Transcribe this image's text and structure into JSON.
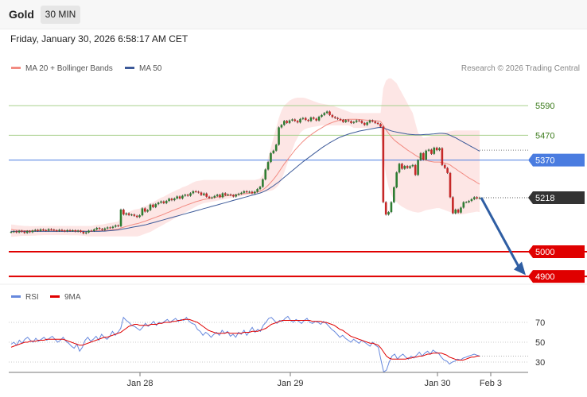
{
  "header": {
    "instrument": "Gold",
    "timeframe": "30 MIN",
    "datetime": "Friday, January 30, 2026 6:58:17 AM CET"
  },
  "legend": {
    "ma20_label": "MA 20 + Bollinger Bands",
    "ma50_label": "MA 50",
    "credit": "Research © 2026 Trading Central"
  },
  "rsi_legend": {
    "rsi_label": "RSI",
    "ma_label": "9MA"
  },
  "colors": {
    "ma20": "#f28b82",
    "ma50": "#3d5a99",
    "bollinger_fill": "#fde2e0",
    "resistance": "#a8d08d",
    "pivot": "#4a7ce0",
    "support": "#e00000",
    "current": "#333333",
    "arrow": "#2f5ea3",
    "rsi": "#6688dd",
    "rsi_ma": "#e00000"
  },
  "chart_data": [
    {
      "type": "candlestick",
      "title": "Gold",
      "timeframe": "30 MIN",
      "x_ticks": [
        "Jan 28",
        "Jan 29",
        "Jan 30",
        "Feb 3"
      ],
      "ylim": [
        4860,
        5700
      ],
      "levels": [
        {
          "value": 5590,
          "label": "5590",
          "kind": "resistance"
        },
        {
          "value": 5470,
          "label": "5470",
          "kind": "resistance"
        },
        {
          "value": 5370,
          "label": "5370",
          "kind": "pivot"
        },
        {
          "value": 5218,
          "label": "5218",
          "kind": "current"
        },
        {
          "value": 5000,
          "label": "5000",
          "kind": "support"
        },
        {
          "value": 4900,
          "label": "4900",
          "kind": "support"
        }
      ],
      "close": [
        5080,
        5082,
        5078,
        5084,
        5081,
        5076,
        5083,
        5079,
        5085,
        5088,
        5084,
        5090,
        5087,
        5085,
        5091,
        5089,
        5086,
        5084,
        5088,
        5085,
        5083,
        5087,
        5084,
        5086,
        5082,
        5085,
        5080,
        5074,
        5078,
        5085,
        5084,
        5090,
        5096,
        5092,
        5088,
        5094,
        5098,
        5096,
        5101,
        5106,
        5103,
        5170,
        5150,
        5155,
        5148,
        5150,
        5145,
        5140,
        5147,
        5175,
        5162,
        5168,
        5190,
        5180,
        5192,
        5198,
        5203,
        5196,
        5205,
        5214,
        5208,
        5215,
        5223,
        5215,
        5226,
        5230,
        5226,
        5236,
        5244,
        5242,
        5239,
        5229,
        5235,
        5222,
        5217,
        5219,
        5225,
        5230,
        5220,
        5236,
        5229,
        5231,
        5228,
        5223,
        5230,
        5234,
        5238,
        5244,
        5240,
        5242,
        5236,
        5242,
        5253,
        5262,
        5292,
        5332,
        5362,
        5398,
        5408,
        5432,
        5502,
        5512,
        5528,
        5520,
        5530,
        5534,
        5528,
        5522,
        5536,
        5540,
        5532,
        5528,
        5542,
        5537,
        5530,
        5545,
        5552,
        5560,
        5566,
        5552,
        5544,
        5540,
        5536,
        5532,
        5524,
        5531,
        5527,
        5520,
        5524,
        5530,
        5528,
        5520,
        5512,
        5522,
        5530,
        5526,
        5520,
        5516,
        5505,
        5200,
        5150,
        5160,
        5200,
        5260,
        5320,
        5355,
        5335,
        5346,
        5338,
        5345,
        5350,
        5310,
        5370,
        5398,
        5372,
        5408,
        5412,
        5395,
        5420,
        5410,
        5418,
        5350,
        5338,
        5318,
        5220,
        5155,
        5170,
        5158,
        5178,
        5200,
        5200,
        5205,
        5212,
        5220,
        5215,
        5218
      ],
      "ma20": [
        5090,
        5088,
        5087,
        5086,
        5086,
        5085,
        5085,
        5084,
        5085,
        5085,
        5085,
        5086,
        5086,
        5086,
        5086,
        5086,
        5086,
        5086,
        5086,
        5085,
        5085,
        5085,
        5085,
        5085,
        5085,
        5085,
        5084,
        5084,
        5083,
        5083,
        5083,
        5084,
        5085,
        5085,
        5085,
        5086,
        5087,
        5088,
        5089,
        5090,
        5092,
        5096,
        5099,
        5102,
        5105,
        5108,
        5111,
        5113,
        5116,
        5120,
        5123,
        5127,
        5131,
        5135,
        5139,
        5143,
        5147,
        5151,
        5156,
        5160,
        5165,
        5169,
        5173,
        5177,
        5182,
        5186,
        5190,
        5194,
        5198,
        5202,
        5205,
        5208,
        5211,
        5213,
        5215,
        5217,
        5219,
        5221,
        5222,
        5223,
        5225,
        5226,
        5228,
        5229,
        5230,
        5231,
        5232,
        5234,
        5235,
        5236,
        5237,
        5239,
        5241,
        5244,
        5250,
        5258,
        5268,
        5280,
        5292,
        5306,
        5322,
        5338,
        5354,
        5368,
        5382,
        5396,
        5410,
        5422,
        5434,
        5445,
        5455,
        5464,
        5472,
        5480,
        5487,
        5494,
        5500,
        5507,
        5513,
        5518,
        5522,
        5526,
        5529,
        5531,
        5533,
        5534,
        5535,
        5535,
        5535,
        5535,
        5534,
        5533,
        5532,
        5531,
        5531,
        5530,
        5529,
        5528,
        5526,
        5510,
        5493,
        5478,
        5464,
        5452,
        5443,
        5435,
        5427,
        5419,
        5411,
        5404,
        5397,
        5390,
        5383,
        5379,
        5373,
        5369,
        5366,
        5364,
        5362,
        5362,
        5362,
        5360,
        5358,
        5355,
        5350,
        5342,
        5335,
        5327,
        5320,
        5313,
        5305,
        5298,
        5292,
        5286,
        5279,
        5273
      ],
      "ma50": [
        5082,
        5082,
        5082,
        5082,
        5082,
        5082,
        5082,
        5082,
        5082,
        5082,
        5082,
        5082,
        5082,
        5082,
        5082,
        5082,
        5082,
        5082,
        5082,
        5082,
        5082,
        5082,
        5082,
        5082,
        5082,
        5082,
        5082,
        5082,
        5082,
        5082,
        5082,
        5082,
        5082,
        5082,
        5083,
        5083,
        5084,
        5085,
        5086,
        5087,
        5088,
        5090,
        5092,
        5094,
        5096,
        5098,
        5100,
        5102,
        5104,
        5106,
        5108,
        5111,
        5114,
        5117,
        5120,
        5123,
        5126,
        5129,
        5132,
        5135,
        5138,
        5141,
        5144,
        5147,
        5150,
        5153,
        5156,
        5159,
        5162,
        5165,
        5168,
        5171,
        5174,
        5177,
        5180,
        5183,
        5186,
        5189,
        5192,
        5195,
        5198,
        5201,
        5204,
        5207,
        5210,
        5213,
        5216,
        5219,
        5222,
        5225,
        5228,
        5231,
        5234,
        5237,
        5241,
        5246,
        5252,
        5259,
        5266,
        5274,
        5282,
        5291,
        5300,
        5309,
        5318,
        5327,
        5336,
        5345,
        5354,
        5363,
        5371,
        5379,
        5387,
        5395,
        5403,
        5411,
        5419,
        5426,
        5433,
        5440,
        5446,
        5452,
        5458,
        5463,
        5467,
        5471,
        5475,
        5478,
        5481,
        5484,
        5487,
        5489,
        5491,
        5493,
        5495,
        5497,
        5499,
        5501,
        5502,
        5500,
        5496,
        5492,
        5488,
        5485,
        5483,
        5481,
        5479,
        5477,
        5475,
        5474,
        5473,
        5472,
        5472,
        5472,
        5473,
        5474,
        5474,
        5475,
        5476,
        5477,
        5478,
        5478,
        5477,
        5475,
        5470,
        5465,
        5460,
        5454,
        5448,
        5442,
        5436,
        5430,
        5424,
        5418,
        5412,
        5406
      ],
      "bollinger_upper": [
        5110,
        5109,
        5107,
        5106,
        5105,
        5104,
        5104,
        5103,
        5103,
        5103,
        5103,
        5104,
        5104,
        5104,
        5104,
        5104,
        5104,
        5104,
        5104,
        5104,
        5104,
        5104,
        5104,
        5104,
        5104,
        5104,
        5104,
        5104,
        5104,
        5104,
        5104,
        5106,
        5108,
        5109,
        5110,
        5112,
        5114,
        5116,
        5118,
        5120,
        5122,
        5138,
        5146,
        5154,
        5160,
        5166,
        5170,
        5172,
        5174,
        5180,
        5184,
        5188,
        5196,
        5200,
        5206,
        5212,
        5218,
        5222,
        5228,
        5234,
        5240,
        5244,
        5250,
        5254,
        5260,
        5264,
        5268,
        5274,
        5280,
        5284,
        5286,
        5288,
        5290,
        5290,
        5290,
        5290,
        5290,
        5290,
        5290,
        5290,
        5290,
        5290,
        5290,
        5290,
        5290,
        5290,
        5290,
        5290,
        5290,
        5290,
        5290,
        5290,
        5292,
        5296,
        5310,
        5340,
        5380,
        5420,
        5460,
        5500,
        5540,
        5570,
        5590,
        5600,
        5610,
        5616,
        5620,
        5622,
        5622,
        5622,
        5620,
        5616,
        5612,
        5608,
        5604,
        5600,
        5598,
        5596,
        5594,
        5592,
        5590,
        5586,
        5582,
        5578,
        5574,
        5570,
        5566,
        5562,
        5560,
        5560,
        5560,
        5560,
        5560,
        5560,
        5560,
        5560,
        5560,
        5560,
        5560,
        5660,
        5690,
        5700,
        5700,
        5690,
        5680,
        5660,
        5640,
        5620,
        5600,
        5580,
        5560,
        5520,
        5480,
        5470,
        5460,
        5462,
        5464,
        5468,
        5472,
        5476,
        5478,
        5480,
        5482,
        5484,
        5486,
        5488,
        5490,
        5490,
        5490,
        5490,
        5490,
        5490,
        5490,
        5490,
        5490,
        5490
      ],
      "bollinger_lower": [
        5060,
        5061,
        5062,
        5063,
        5064,
        5064,
        5064,
        5064,
        5065,
        5065,
        5066,
        5066,
        5067,
        5067,
        5067,
        5067,
        5067,
        5067,
        5067,
        5067,
        5067,
        5067,
        5066,
        5066,
        5066,
        5066,
        5065,
        5064,
        5063,
        5062,
        5062,
        5062,
        5062,
        5062,
        5062,
        5062,
        5062,
        5062,
        5062,
        5062,
        5062,
        5062,
        5062,
        5062,
        5062,
        5062,
        5062,
        5062,
        5064,
        5068,
        5072,
        5076,
        5080,
        5086,
        5092,
        5098,
        5104,
        5110,
        5116,
        5122,
        5128,
        5134,
        5140,
        5146,
        5152,
        5158,
        5164,
        5170,
        5176,
        5182,
        5188,
        5192,
        5196,
        5198,
        5200,
        5202,
        5204,
        5206,
        5208,
        5210,
        5212,
        5214,
        5216,
        5218,
        5220,
        5222,
        5224,
        5226,
        5228,
        5230,
        5232,
        5234,
        5236,
        5238,
        5240,
        5242,
        5244,
        5246,
        5250,
        5258,
        5270,
        5290,
        5320,
        5350,
        5380,
        5410,
        5440,
        5460,
        5480,
        5490,
        5496,
        5500,
        5502,
        5504,
        5506,
        5508,
        5510,
        5510,
        5510,
        5510,
        5510,
        5510,
        5510,
        5510,
        5510,
        5510,
        5510,
        5506,
        5500,
        5500,
        5500,
        5500,
        5500,
        5500,
        5500,
        5500,
        5500,
        5500,
        5495,
        5380,
        5310,
        5260,
        5230,
        5210,
        5200,
        5190,
        5182,
        5176,
        5170,
        5166,
        5162,
        5160,
        5158,
        5160,
        5164,
        5168,
        5170,
        5172,
        5174,
        5176,
        5176,
        5172,
        5168,
        5164,
        5160,
        5156,
        5152,
        5150,
        5150,
        5152,
        5154,
        5156,
        5158,
        5160,
        5162,
        5160
      ]
    },
    {
      "type": "line",
      "title": "RSI",
      "yticks": [
        30,
        50,
        70
      ],
      "ylim": [
        20,
        80
      ],
      "series": [
        {
          "name": "RSI",
          "values": [
            48,
            50,
            47,
            52,
            49,
            53,
            55,
            52,
            50,
            54,
            51,
            53,
            55,
            52,
            54,
            56,
            53,
            50,
            52,
            55,
            51,
            49,
            46,
            44,
            48,
            41,
            45,
            52,
            55,
            51,
            53,
            56,
            52,
            58,
            55,
            53,
            56,
            61,
            57,
            60,
            64,
            75,
            72,
            70,
            67,
            66,
            64,
            62,
            65,
            69,
            66,
            68,
            71,
            67,
            70,
            69,
            71,
            73,
            70,
            72,
            74,
            71,
            73,
            72,
            75,
            71,
            69,
            68,
            63,
            61,
            57,
            60,
            58,
            55,
            58,
            60,
            57,
            62,
            59,
            61,
            56,
            58,
            55,
            60,
            58,
            62,
            57,
            61,
            65,
            60,
            63,
            61,
            67,
            70,
            74,
            75,
            72,
            69,
            72,
            71,
            74,
            76,
            72,
            70,
            73,
            71,
            69,
            72,
            74,
            70,
            69,
            71,
            70,
            68,
            71,
            69,
            66,
            63,
            61,
            58,
            55,
            57,
            54,
            52,
            50,
            53,
            51,
            49,
            52,
            50,
            48,
            46,
            50,
            47,
            45,
            32,
            20,
            22,
            30,
            36,
            38,
            33,
            36,
            38,
            35,
            33,
            36,
            34,
            37,
            40,
            36,
            39,
            41,
            38,
            42,
            40,
            39,
            35,
            32,
            31,
            28,
            30,
            31,
            33,
            32,
            34,
            35,
            36,
            37,
            38,
            37,
            36
          ]
        },
        {
          "name": "9MA",
          "values": [
            45,
            46,
            47,
            48,
            49,
            50,
            50,
            51,
            51,
            51,
            52,
            52,
            52,
            53,
            53,
            53,
            53,
            53,
            53,
            53,
            52,
            51,
            50,
            49,
            48,
            47,
            47,
            48,
            49,
            50,
            51,
            52,
            53,
            54,
            55,
            55,
            56,
            57,
            58,
            59,
            60,
            62,
            64,
            66,
            67,
            68,
            68,
            67,
            67,
            67,
            67,
            68,
            68,
            68,
            69,
            69,
            70,
            70,
            70,
            71,
            71,
            72,
            72,
            73,
            73,
            73,
            72,
            71,
            70,
            68,
            66,
            64,
            62,
            61,
            60,
            59,
            59,
            59,
            59,
            60,
            59,
            59,
            59,
            59,
            59,
            60,
            60,
            60,
            61,
            61,
            61,
            62,
            63,
            64,
            66,
            68,
            69,
            70,
            71,
            72,
            72,
            72,
            72,
            72,
            72,
            72,
            72,
            72,
            72,
            72,
            71,
            71,
            71,
            71,
            70,
            70,
            69,
            68,
            67,
            65,
            63,
            62,
            60,
            58,
            56,
            55,
            54,
            53,
            52,
            51,
            50,
            49,
            49,
            48,
            47,
            44,
            40,
            36,
            34,
            33,
            33,
            33,
            33,
            33,
            33,
            34,
            34,
            35,
            35,
            36,
            36,
            37,
            38,
            38,
            39,
            39,
            39,
            39,
            38,
            37,
            35,
            34,
            33,
            32,
            32,
            32,
            33,
            34,
            35,
            35,
            36,
            36
          ]
        }
      ]
    }
  ]
}
